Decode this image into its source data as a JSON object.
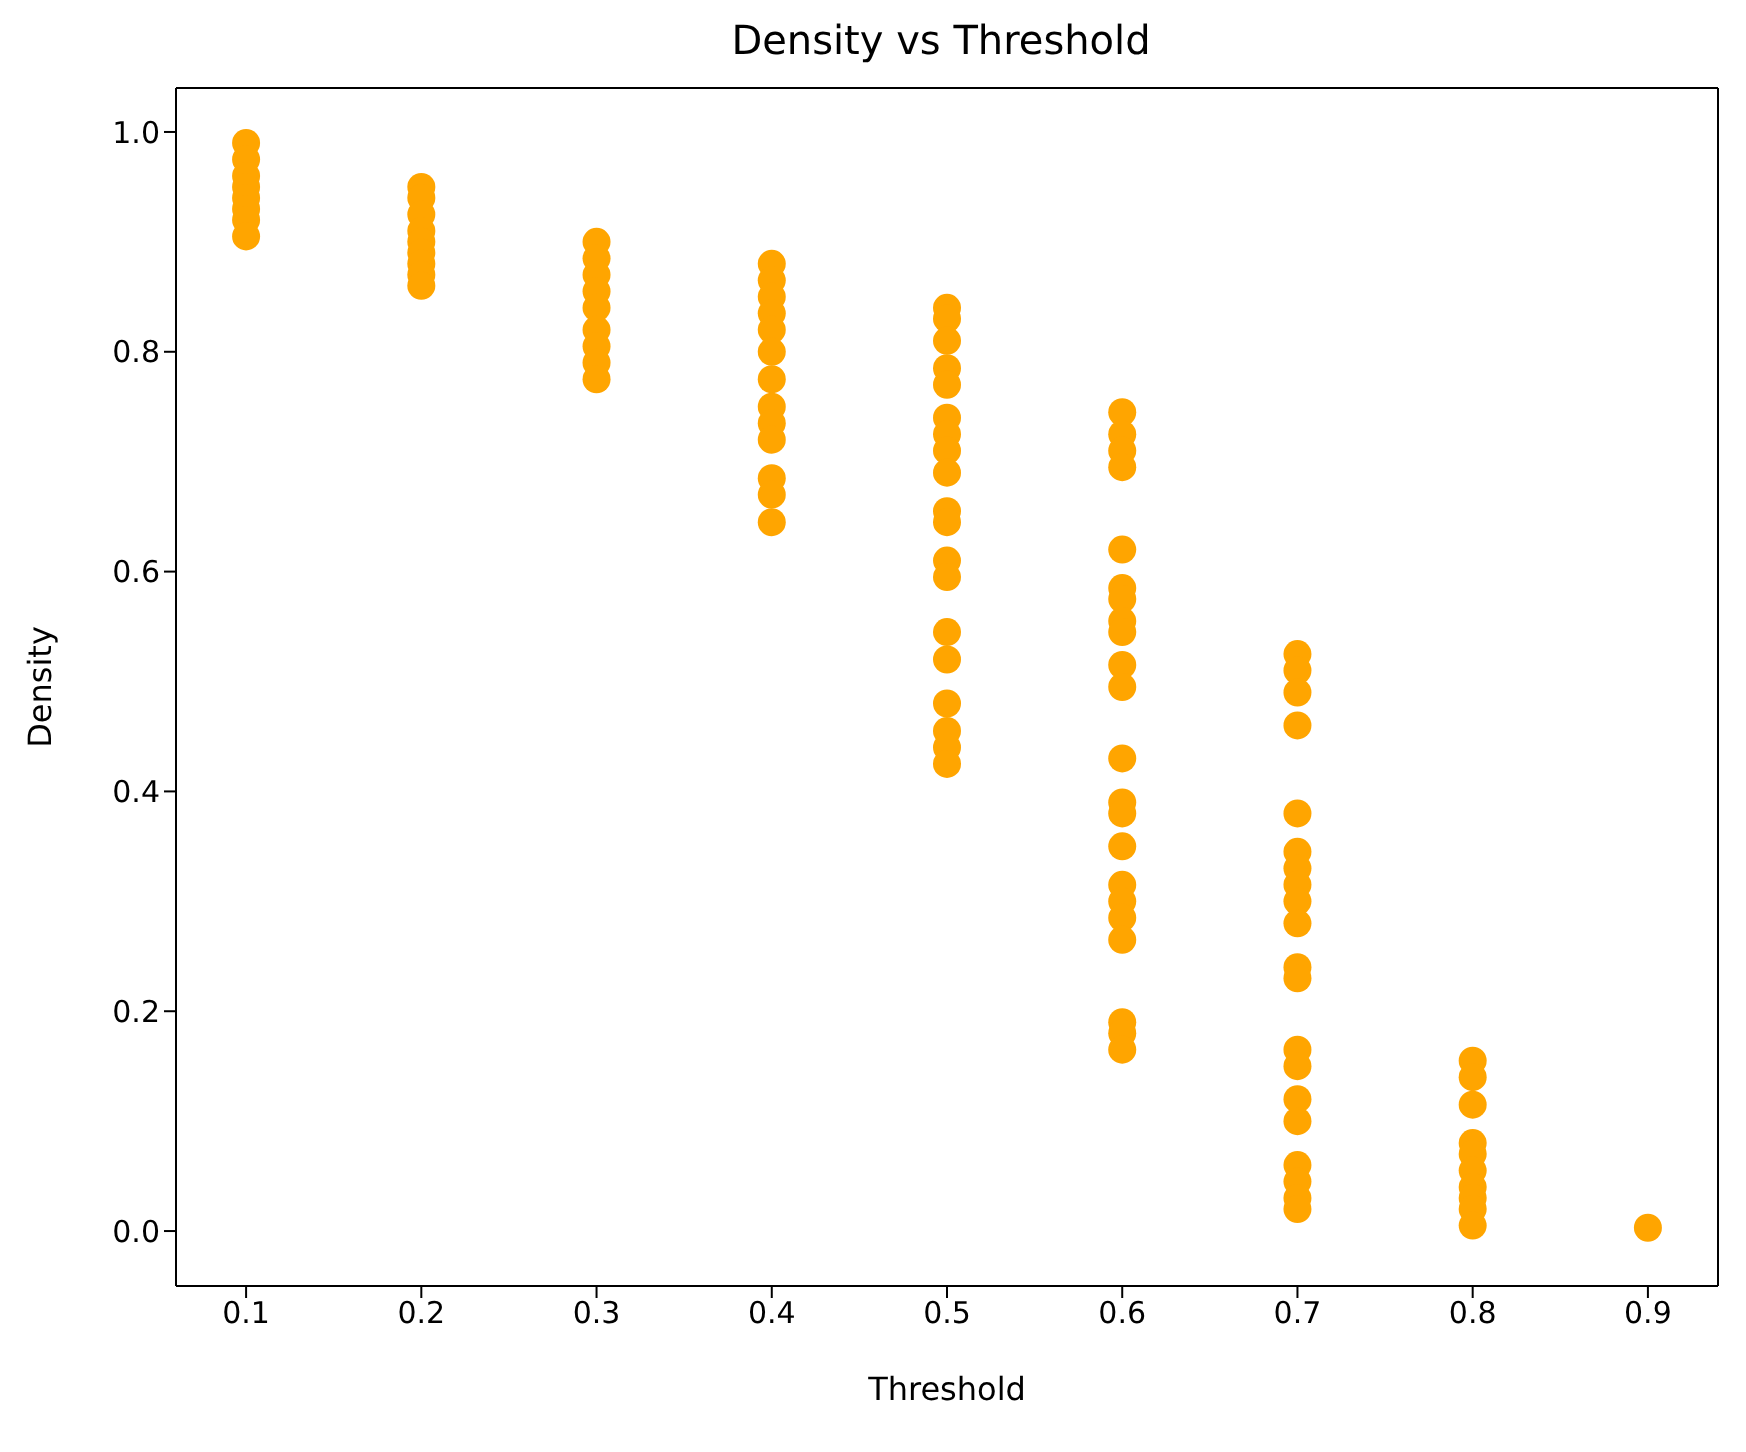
{
  "chart_data": {
    "type": "scatter",
    "title": "Density vs Threshold",
    "xlabel": "Threshold",
    "ylabel": "Density",
    "marker": "circle",
    "grid": false,
    "xlim": [
      0.06,
      0.94
    ],
    "ylim": [
      -0.05,
      1.04
    ],
    "xticks": [
      0.1,
      0.2,
      0.3,
      0.4,
      0.5,
      0.6,
      0.7,
      0.8,
      0.9
    ],
    "yticks": [
      {
        "value": 0,
        "label": "0.0"
      },
      0.2,
      0.4,
      0.6,
      0.8,
      {
        "value": 1,
        "label": "1.0"
      }
    ],
    "series": [
      {
        "color": "#ffa500",
        "x": [
          0.1,
          0.1,
          0.1,
          0.1,
          0.1,
          0.1,
          0.1,
          0.1,
          0.2,
          0.2,
          0.2,
          0.2,
          0.2,
          0.2,
          0.2,
          0.2,
          0.2,
          0.3,
          0.3,
          0.3,
          0.3,
          0.3,
          0.3,
          0.3,
          0.3,
          0.3,
          0.4,
          0.4,
          0.4,
          0.4,
          0.4,
          0.4,
          0.4,
          0.4,
          0.4,
          0.4,
          0.4,
          0.4,
          0.4,
          0.5,
          0.5,
          0.5,
          0.5,
          0.5,
          0.5,
          0.5,
          0.5,
          0.5,
          0.5,
          0.5,
          0.5,
          0.5,
          0.5,
          0.5,
          0.5,
          0.5,
          0.5,
          0.5,
          0.6,
          0.6,
          0.6,
          0.6,
          0.6,
          0.6,
          0.6,
          0.6,
          0.6,
          0.6,
          0.6,
          0.6,
          0.6,
          0.6,
          0.6,
          0.6,
          0.6,
          0.6,
          0.6,
          0.6,
          0.6,
          0.6,
          0.7,
          0.7,
          0.7,
          0.7,
          0.7,
          0.7,
          0.7,
          0.7,
          0.7,
          0.7,
          0.7,
          0.7,
          0.7,
          0.7,
          0.7,
          0.7,
          0.7,
          0.7,
          0.7,
          0.7,
          0.8,
          0.8,
          0.8,
          0.8,
          0.8,
          0.8,
          0.8,
          0.8,
          0.8,
          0.8,
          0.9
        ],
        "values": [
          0.99,
          0.975,
          0.96,
          0.95,
          0.94,
          0.93,
          0.92,
          0.905,
          0.95,
          0.94,
          0.925,
          0.91,
          0.9,
          0.89,
          0.88,
          0.87,
          0.86,
          0.9,
          0.885,
          0.87,
          0.855,
          0.84,
          0.82,
          0.805,
          0.79,
          0.775,
          0.88,
          0.865,
          0.85,
          0.835,
          0.82,
          0.8,
          0.775,
          0.75,
          0.735,
          0.72,
          0.685,
          0.67,
          0.645,
          0.84,
          0.83,
          0.81,
          0.785,
          0.77,
          0.74,
          0.725,
          0.71,
          0.69,
          0.655,
          0.645,
          0.61,
          0.595,
          0.545,
          0.52,
          0.48,
          0.455,
          0.44,
          0.425,
          0.745,
          0.725,
          0.71,
          0.695,
          0.62,
          0.585,
          0.575,
          0.555,
          0.545,
          0.515,
          0.495,
          0.43,
          0.39,
          0.38,
          0.35,
          0.315,
          0.3,
          0.285,
          0.265,
          0.19,
          0.18,
          0.165,
          0.525,
          0.51,
          0.49,
          0.46,
          0.38,
          0.345,
          0.33,
          0.315,
          0.3,
          0.28,
          0.24,
          0.23,
          0.165,
          0.15,
          0.12,
          0.1,
          0.06,
          0.045,
          0.03,
          0.02,
          0.155,
          0.14,
          0.115,
          0.08,
          0.07,
          0.055,
          0.04,
          0.03,
          0.02,
          0.005,
          0.003
        ]
      }
    ]
  }
}
